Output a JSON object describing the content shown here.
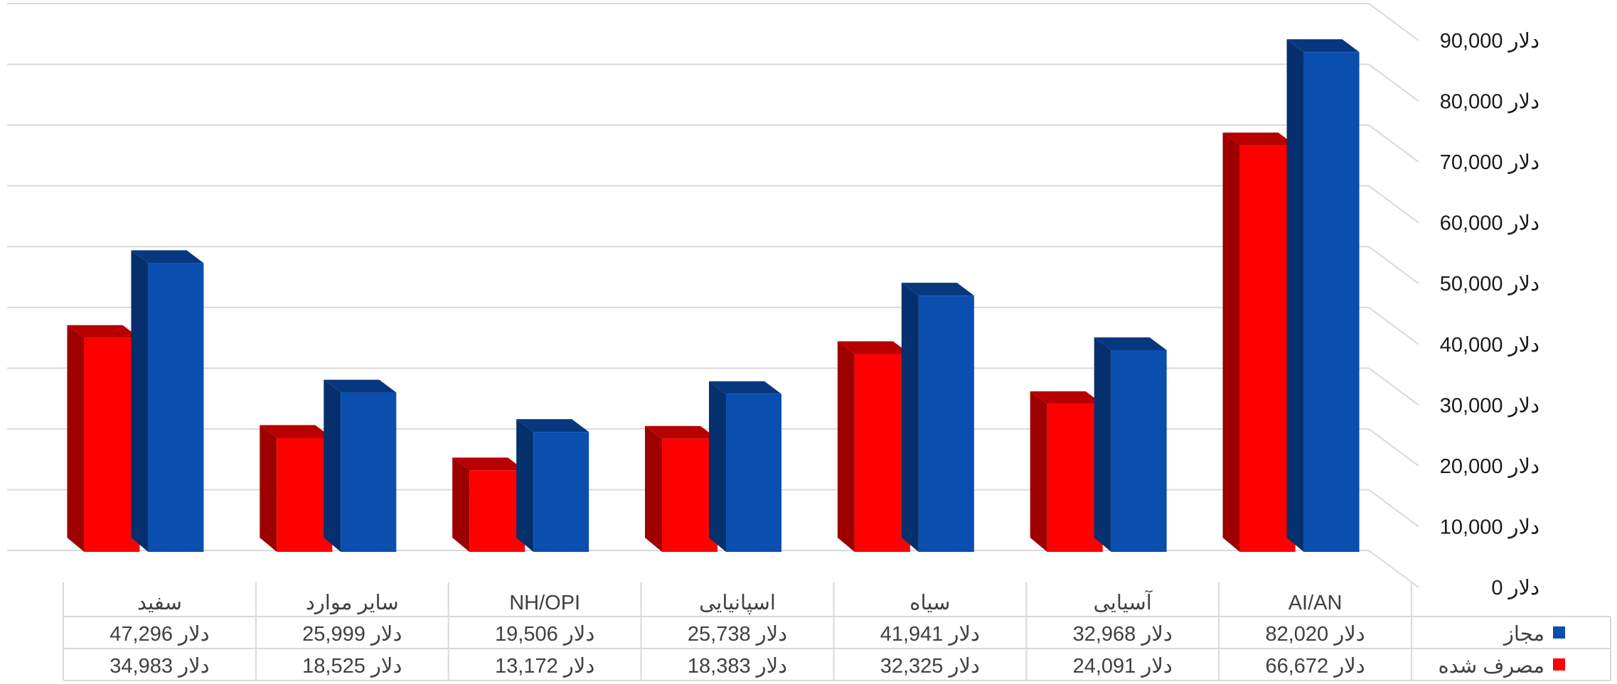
{
  "chart_data": {
    "type": "bar",
    "style": "3d-clustered-columns-with-data-table",
    "currency_suffix": "دلار",
    "categories": [
      "AI/AN",
      "آسیایی",
      "سیاه",
      "اسپانیایی",
      "NH/OPI",
      "سایر موارد",
      "سفید"
    ],
    "series": [
      {
        "name": "مجاز",
        "color": "#0A4EB0",
        "values": [
          82020,
          32968,
          41941,
          25738,
          19506,
          25999,
          47296
        ]
      },
      {
        "name": "مصرف شده",
        "color": "#FF0000",
        "values": [
          66672,
          24091,
          32325,
          18383,
          13172,
          18525,
          34983
        ]
      }
    ],
    "table": {
      "rows": [
        {
          "label": "مجاز",
          "cells": [
            "82,020 دلار",
            "32,968 دلار",
            "41,941 دلار",
            "25,738 دلار",
            "19,506 دلار",
            "25,999 دلار",
            "47,296 دلار"
          ]
        },
        {
          "label": "مصرف شده",
          "cells": [
            "66,672 دلار",
            "24,091 دلار",
            "32,325 دلار",
            "18,383 دلار",
            "13,172 دلار",
            "18,525 دلار",
            "34,983 دلار"
          ]
        }
      ]
    },
    "y_ticks": [
      "0 دلار",
      "10,000 دلار",
      "20,000 دلار",
      "30,000 دلار",
      "40,000 دلار",
      "50,000 دلار",
      "60,000 دلار",
      "70,000 دلار",
      "80,000 دلار",
      "90,000 دلار"
    ],
    "ylim": [
      0,
      90000
    ],
    "y_axis_position": "right",
    "grid": true,
    "legend": "data-table-rows"
  }
}
